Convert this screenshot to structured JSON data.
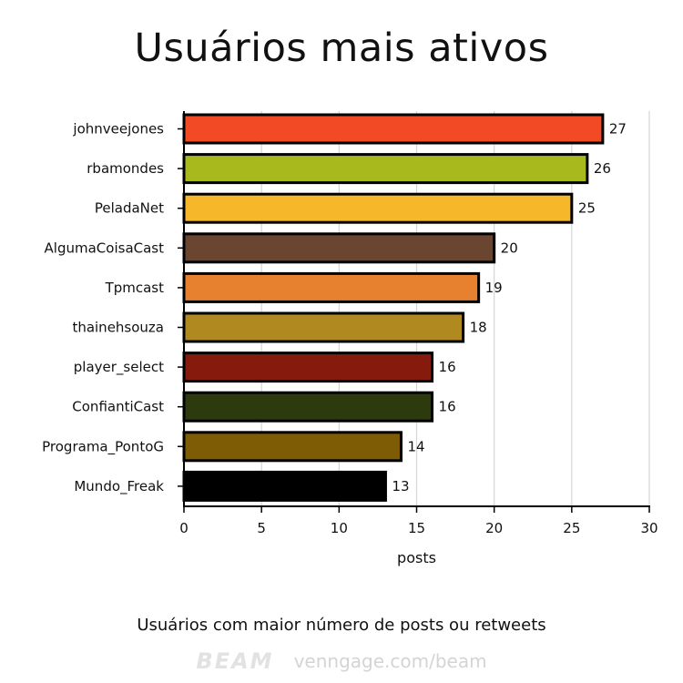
{
  "header": {
    "title": "Usuários mais ativos"
  },
  "caption": "Usuários com maior número de posts ou retweets",
  "footer": {
    "brand": "BEAM",
    "url": "venngage.com/beam"
  },
  "chart_data": {
    "type": "bar",
    "orientation": "horizontal",
    "title": "Usuários mais ativos",
    "xlabel": "posts",
    "ylabel": "",
    "xlim": [
      0,
      30
    ],
    "xticks": [
      0,
      5,
      10,
      15,
      20,
      25,
      30
    ],
    "grid": true,
    "categories": [
      "johnveejones",
      "rbamondes",
      "PeladaNet",
      "AlgumaCoisaCast",
      "Tpmcast",
      "thainehsouza",
      "player_select",
      "ConfiantiCast",
      "Programa_PontoG",
      "Mundo_Freak"
    ],
    "values": [
      27,
      26,
      25,
      20,
      19,
      18,
      16,
      16,
      14,
      13
    ],
    "colors": [
      "#f24a25",
      "#a8b91e",
      "#f6b72a",
      "#6a4630",
      "#e8812f",
      "#b08a20",
      "#861a0d",
      "#2d3a0d",
      "#7e5c06",
      "#000000"
    ]
  }
}
